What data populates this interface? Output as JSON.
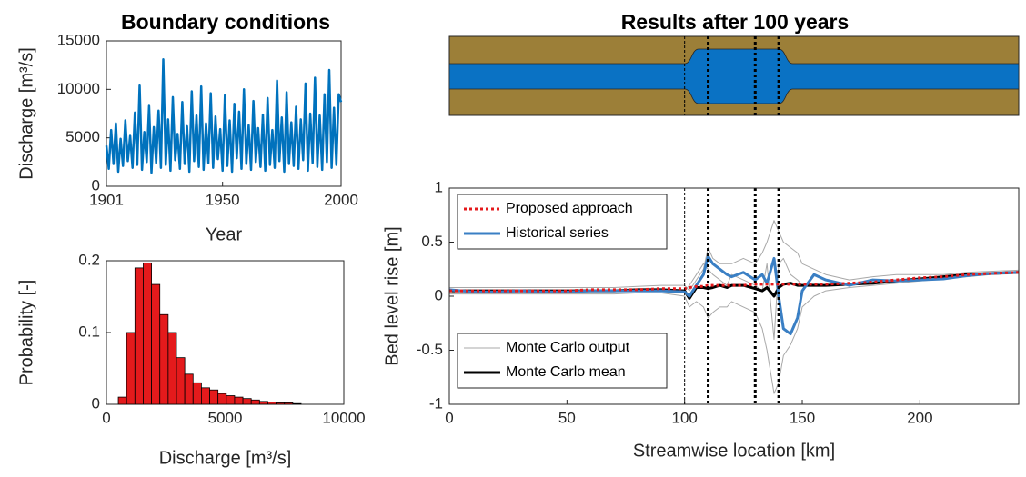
{
  "chart_data": [
    {
      "type": "line",
      "title": "Boundary conditions",
      "xlabel": "Year",
      "ylabel": "Discharge [m³/s]",
      "x": [
        1901,
        1902,
        1903,
        1904,
        1905,
        1906,
        1907,
        1908,
        1909,
        1910,
        1911,
        1912,
        1913,
        1914,
        1915,
        1916,
        1917,
        1918,
        1919,
        1920,
        1921,
        1922,
        1923,
        1924,
        1925,
        1926,
        1927,
        1928,
        1929,
        1930,
        1931,
        1932,
        1933,
        1934,
        1935,
        1936,
        1937,
        1938,
        1939,
        1940,
        1941,
        1942,
        1943,
        1944,
        1945,
        1946,
        1947,
        1948,
        1949,
        1950,
        1951,
        1952,
        1953,
        1954,
        1955,
        1956,
        1957,
        1958,
        1959,
        1960,
        1961,
        1962,
        1963,
        1964,
        1965,
        1966,
        1967,
        1968,
        1969,
        1970,
        1971,
        1972,
        1973,
        1974,
        1975,
        1976,
        1977,
        1978,
        1979,
        1980,
        1981,
        1982,
        1983,
        1984,
        1985,
        1986,
        1987,
        1988,
        1989,
        1990,
        1991,
        1992,
        1993,
        1994,
        1995,
        1996,
        1997,
        1998,
        1999,
        2000
      ],
      "values": [
        4200,
        1800,
        5800,
        2300,
        6500,
        1500,
        4900,
        2100,
        6800,
        2600,
        5200,
        1900,
        7600,
        2200,
        10400,
        1700,
        5600,
        2500,
        8300,
        1400,
        6100,
        2400,
        7800,
        1900,
        13100,
        2200,
        6900,
        1600,
        9200,
        2700,
        5400,
        1800,
        8700,
        2300,
        6200,
        1500,
        9800,
        2600,
        7300,
        2000,
        10300,
        1700,
        6500,
        2400,
        9600,
        1900,
        7200,
        2800,
        5900,
        1600,
        9400,
        2100,
        6800,
        1500,
        8500,
        2900,
        7700,
        1800,
        10000,
        2300,
        6300,
        1700,
        8800,
        2500,
        6000,
        2000,
        7400,
        1600,
        9100,
        2200,
        5800,
        1900,
        10900,
        2600,
        7100,
        1500,
        9700,
        2300,
        6600,
        2100,
        8200,
        1800,
        6900,
        2700,
        10600,
        1600,
        7500,
        2400,
        11200,
        2000,
        7300,
        1700,
        9500,
        2500,
        12000,
        1900,
        8100,
        2200,
        9500,
        8700
      ],
      "color": "#0072bd",
      "xlim": [
        1901,
        2000
      ],
      "xticks": [
        1901,
        1950,
        2000
      ],
      "ylim": [
        0,
        15000
      ],
      "yticks": [
        0,
        5000,
        10000,
        15000
      ]
    },
    {
      "type": "histogram",
      "xlabel": "Discharge [m³/s]",
      "ylabel": "Probability [-]",
      "bins": [
        500,
        850,
        1200,
        1550,
        1900,
        2250,
        2600,
        2950,
        3300,
        3650,
        4000,
        4350,
        4700,
        5050,
        5400,
        5750,
        6100,
        6450,
        6800,
        7150,
        7500,
        7850,
        8200
      ],
      "values": [
        0.01,
        0.1,
        0.19,
        0.197,
        0.167,
        0.125,
        0.1,
        0.065,
        0.042,
        0.03,
        0.023,
        0.02,
        0.015,
        0.012,
        0.01,
        0.008,
        0.006,
        0.004,
        0.003,
        0.002,
        0.002,
        0.001
      ],
      "color": "#e41a1c",
      "xlim": [
        0,
        10000
      ],
      "xticks": [
        0,
        5000,
        10000
      ],
      "ylim": [
        0,
        0.2
      ],
      "yticks": [
        0,
        0.1,
        0.2
      ]
    },
    {
      "type": "line",
      "title": "Results after 100 years",
      "xlabel": "Streamwise location [km]",
      "ylabel": "Bed level rise [m]",
      "x": [
        0,
        10,
        20,
        30,
        40,
        50,
        60,
        70,
        80,
        90,
        100,
        102,
        105,
        108,
        110,
        112,
        115,
        118,
        120,
        125,
        130,
        133,
        135,
        138,
        140,
        142,
        145,
        148,
        150,
        155,
        160,
        170,
        180,
        190,
        200,
        210,
        220,
        230,
        242
      ],
      "vlines": [
        100,
        110,
        130,
        140
      ],
      "xlim": [
        0,
        242
      ],
      "xticks": [
        0,
        50,
        100,
        150,
        200
      ],
      "ylim": [
        -1,
        1
      ],
      "yticks": [
        -1,
        -0.5,
        0,
        0.5,
        1
      ],
      "series": [
        {
          "name": "Proposed approach",
          "color": "#e41a1c",
          "linestyle": ":",
          "values": [
            0.05,
            0.05,
            0.05,
            0.05,
            0.05,
            0.05,
            0.06,
            0.06,
            0.06,
            0.07,
            0.07,
            0.08,
            0.09,
            0.09,
            0.1,
            0.1,
            0.1,
            0.1,
            0.1,
            0.1,
            0.11,
            0.11,
            0.11,
            0.11,
            0.11,
            0.11,
            0.11,
            0.11,
            0.11,
            0.11,
            0.11,
            0.12,
            0.13,
            0.15,
            0.17,
            0.18,
            0.2,
            0.21,
            0.22
          ]
        },
        {
          "name": "Historical series",
          "color": "#3a7fc4",
          "linestyle": "-",
          "values": [
            0.06,
            0.04,
            0.04,
            0.05,
            0.04,
            0.04,
            0.05,
            0.05,
            0.05,
            0.05,
            0.04,
            0.0,
            0.1,
            0.2,
            0.37,
            0.3,
            0.25,
            0.2,
            0.18,
            0.22,
            0.15,
            0.2,
            0.12,
            0.35,
            0.0,
            -0.3,
            -0.35,
            -0.2,
            0.05,
            0.2,
            0.15,
            0.1,
            0.15,
            0.14,
            0.15,
            0.16,
            0.19,
            0.21,
            0.22
          ]
        },
        {
          "name": "Monte Carlo output",
          "color": "#a8a8a8",
          "linestyle": "-",
          "lines": [
            [
              0.08,
              0.08,
              0.08,
              0.08,
              0.08,
              0.08,
              0.08,
              0.08,
              0.09,
              0.1,
              0.1,
              0.05,
              0.15,
              0.25,
              0.45,
              0.35,
              0.3,
              0.3,
              0.3,
              0.35,
              0.3,
              0.4,
              0.5,
              0.7,
              0.6,
              0.5,
              0.45,
              0.4,
              0.3,
              0.25,
              0.2,
              0.15,
              0.18,
              0.2,
              0.2,
              0.2,
              0.22,
              0.23,
              0.24
            ],
            [
              0.02,
              0.02,
              0.02,
              0.02,
              0.02,
              0.02,
              0.02,
              0.02,
              0.03,
              0.03,
              0.0,
              -0.1,
              -0.05,
              -0.1,
              -0.2,
              -0.15,
              -0.1,
              -0.1,
              -0.05,
              -0.1,
              -0.15,
              -0.3,
              -0.5,
              -0.9,
              -0.8,
              -0.55,
              -0.45,
              -0.3,
              -0.1,
              0.0,
              0.05,
              0.08,
              0.1,
              0.12,
              0.14,
              0.16,
              0.18,
              0.2,
              0.21
            ],
            [
              0.05,
              0.05,
              0.05,
              0.05,
              0.05,
              0.05,
              0.05,
              0.05,
              0.06,
              0.06,
              0.05,
              0.1,
              0.2,
              0.3,
              0.25,
              0.2,
              0.15,
              0.1,
              0.2,
              0.15,
              0.1,
              0.05,
              0.3,
              -0.4,
              0.3,
              0.35,
              0.2,
              0.15,
              0.1,
              0.12,
              0.1,
              0.11,
              0.12,
              0.14,
              0.16,
              0.18,
              0.2,
              0.21,
              0.22
            ]
          ]
        },
        {
          "name": "Monte Carlo mean",
          "color": "#000000",
          "linestyle": "-",
          "values": [
            0.05,
            0.05,
            0.05,
            0.05,
            0.05,
            0.05,
            0.05,
            0.05,
            0.06,
            0.06,
            0.05,
            -0.02,
            0.08,
            0.08,
            0.07,
            0.08,
            0.1,
            0.08,
            0.1,
            0.1,
            0.07,
            0.05,
            0.08,
            0.0,
            0.08,
            0.11,
            0.12,
            0.1,
            0.1,
            0.1,
            0.1,
            0.11,
            0.12,
            0.14,
            0.16,
            0.18,
            0.2,
            0.21,
            0.22
          ]
        }
      ]
    }
  ]
}
